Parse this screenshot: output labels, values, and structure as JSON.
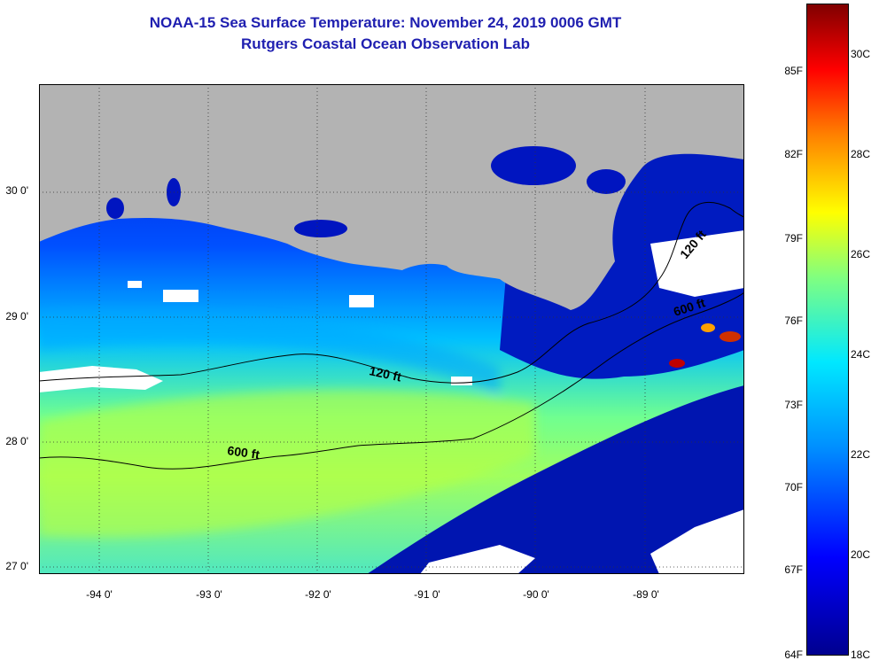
{
  "title": {
    "line1": "NOAA-15 Sea Surface Temperature:  November 24, 2019 0006 GMT",
    "line2": "Rutgers Coastal Ocean Observation Lab"
  },
  "map": {
    "land_color": "#b3b3b3",
    "cloud_color": "#ffffff",
    "y_ticks": [
      "30 0'",
      "29 0'",
      "28 0'",
      "27 0'"
    ],
    "x_ticks": [
      "-94 0'",
      "-93 0'",
      "-92 0'",
      "-91 0'",
      "-90 0'",
      "-89 0'"
    ],
    "contour_labels": [
      "120 ft",
      "600 ft",
      "600 ft",
      "120 ft"
    ]
  },
  "colorbar": {
    "fahrenheit_labels": [
      "85F",
      "82F",
      "79F",
      "76F",
      "73F",
      "70F",
      "67F",
      "64F"
    ],
    "celsius_labels": [
      "30C",
      "28C",
      "26C",
      "24C",
      "22C",
      "20C",
      "18C"
    ],
    "colors": [
      "#00008f",
      "#0000ff",
      "#0090ff",
      "#00e8ff",
      "#80ff80",
      "#ffff00",
      "#ff8000",
      "#ff0000",
      "#800000"
    ]
  }
}
